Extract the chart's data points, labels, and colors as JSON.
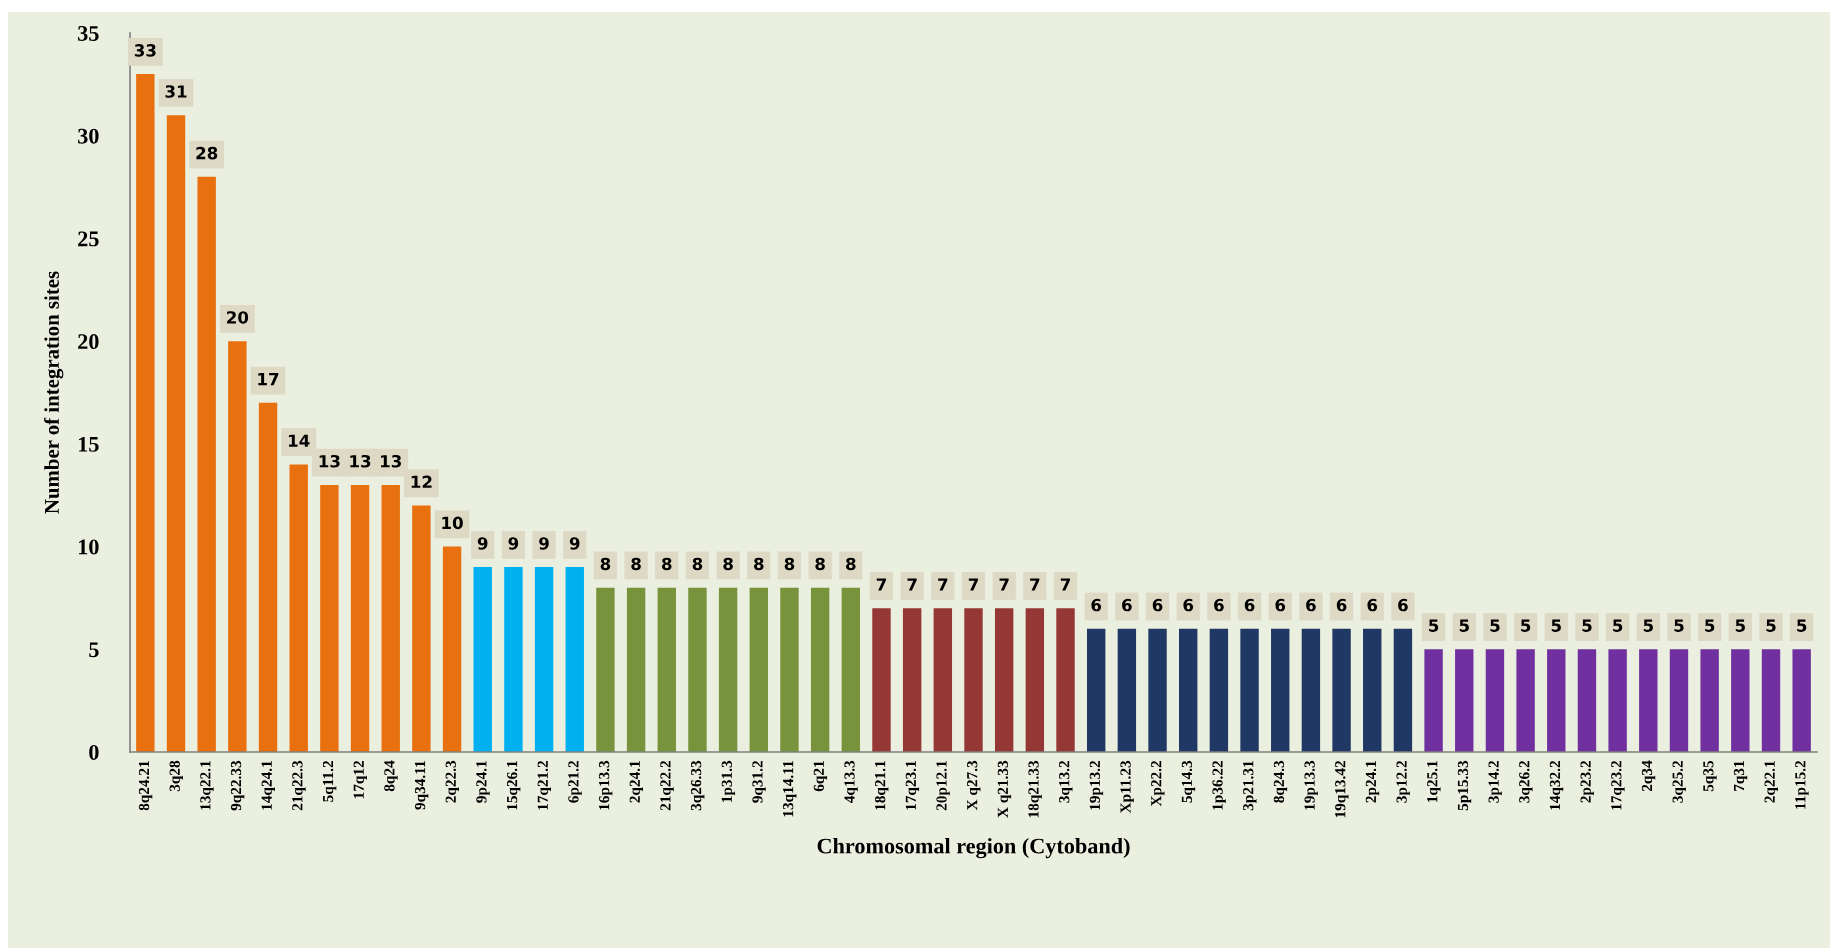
{
  "chart_data": {
    "type": "bar",
    "xlabel": "Chromosomal region (Cytoband)",
    "ylabel": "Number of integration sites",
    "categories": [
      "8q24.21",
      "3q28",
      "13q22.1",
      "9q22.33",
      "14q24.1",
      "21q22.3",
      "5q11.2",
      "17q12",
      "8q24",
      "9q34.11",
      "2q22.3",
      "9p24.1",
      "15q26.1",
      "17q21.2",
      "6p21.2",
      "16p13.3",
      "2q24.1",
      "21q22.2",
      "3q26.33",
      "1p31.3",
      "9q31.2",
      "13q14.11",
      "6q21",
      "4q13.3",
      "18q21.1",
      "17q23.1",
      "20p12.1",
      "X q27.3",
      "X q21.33",
      "18q21.33",
      "3q13.2",
      "19p13.2",
      "Xp11.23",
      "Xp22.2",
      "5q14.3",
      "1p36.22",
      "3p21.31",
      "8q24.3",
      "19p13.3",
      "19q13.42",
      "2p24.1",
      "3p12.2",
      "1q25.1",
      "5p15.33",
      "3p14.2",
      "3q26.2",
      "14q32.2",
      "2p23.2",
      "17q23.2",
      "2q34",
      "3q25.2",
      "5q35",
      "7q31",
      "2q22.1",
      "11p15.2"
    ],
    "values": [
      33,
      31,
      28,
      20,
      17,
      14,
      13,
      13,
      13,
      12,
      10,
      9,
      9,
      9,
      9,
      8,
      8,
      8,
      8,
      8,
      8,
      8,
      8,
      8,
      7,
      7,
      7,
      7,
      7,
      7,
      7,
      6,
      6,
      6,
      6,
      6,
      6,
      6,
      6,
      6,
      6,
      6,
      5,
      5,
      5,
      5,
      5,
      5,
      5,
      5,
      5,
      5,
      5,
      5,
      5
    ],
    "colors": [
      "#e8700e",
      "#e8700e",
      "#e8700e",
      "#e8700e",
      "#e8700e",
      "#e8700e",
      "#e8700e",
      "#e8700e",
      "#e8700e",
      "#e8700e",
      "#e8700e",
      "#00b0f0",
      "#00b0f0",
      "#00b0f0",
      "#00b0f0",
      "#77933c",
      "#77933c",
      "#77933c",
      "#77933c",
      "#77933c",
      "#77933c",
      "#77933c",
      "#77933c",
      "#77933c",
      "#953735",
      "#953735",
      "#953735",
      "#953735",
      "#953735",
      "#953735",
      "#953735",
      "#1f3864",
      "#1f3864",
      "#1f3864",
      "#1f3864",
      "#1f3864",
      "#1f3864",
      "#1f3864",
      "#1f3864",
      "#1f3864",
      "#1f3864",
      "#1f3864",
      "#7030a0",
      "#7030a0",
      "#7030a0",
      "#7030a0",
      "#7030a0",
      "#7030a0",
      "#7030a0",
      "#7030a0",
      "#7030a0",
      "#7030a0",
      "#7030a0",
      "#7030a0",
      "#7030a0"
    ],
    "ylim": [
      0,
      35
    ],
    "yticks": [
      0,
      5,
      10,
      15,
      20,
      25,
      30,
      35
    ],
    "data_labels": true,
    "grid": false
  }
}
